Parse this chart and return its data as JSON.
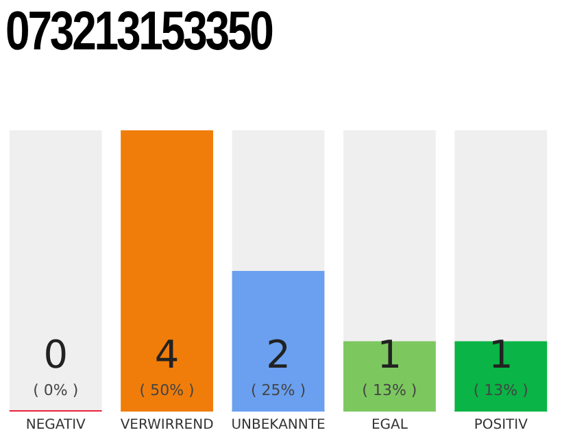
{
  "chart_data": {
    "type": "bar",
    "title": "073213153350",
    "categories": [
      "NEGATIV",
      "VERWIRREND",
      "UNBEKANNTE",
      "EGAL",
      "POSITIV"
    ],
    "values": [
      0,
      4,
      2,
      1,
      1
    ],
    "colors": [
      "#e8203c",
      "#f07d0a",
      "#6aa0ef",
      "#7cc85f",
      "#0ab446"
    ],
    "value_labels": [
      "0\n( 0% )",
      "4\n( 50% )",
      "2\n( 25% )",
      "1\n( 13% )",
      "1\n( 13% )"
    ],
    "grid": false,
    "legend": false
  }
}
